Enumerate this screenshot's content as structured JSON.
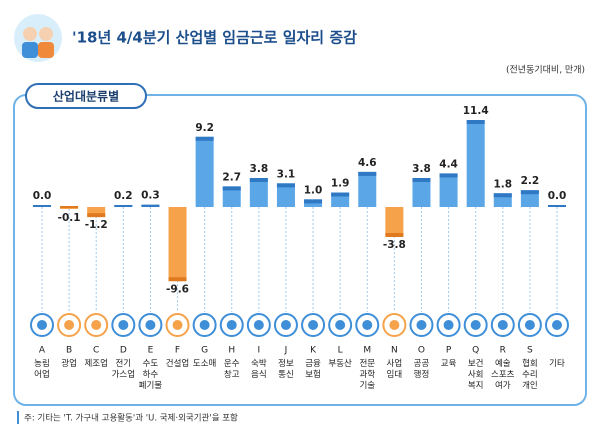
{
  "chart_data": {
    "type": "bar",
    "title": "'18년 4/4분기 산업별 임금근로 일자리 증감",
    "unit": "(전년동기대비, 만개)",
    "section": "산업대분류별",
    "footnote": "주: 기타는 'T. 가구내 고용활동'과 'U. 국제·외국기관'을 포함",
    "codes": [
      "A",
      "B",
      "C",
      "D",
      "E",
      "F",
      "G",
      "H",
      "I",
      "J",
      "K",
      "L",
      "M",
      "N",
      "O",
      "P",
      "Q",
      "R",
      "S",
      null
    ],
    "categories": [
      "농림\n어업",
      "광업",
      "제조업",
      "전기\n가스업",
      "수도\n하수\n폐기물",
      "건설업",
      "도소매",
      "운수\n창고",
      "숙박\n음식",
      "정보\n통신",
      "금융\n보험",
      "부동산",
      "전문\n과학\n기술",
      "사업\n임대",
      "공공\n행정",
      "교육",
      "보건\n사회\n복지",
      "예술\n스포츠\n여가",
      "협회\n수리\n개인",
      "기타"
    ],
    "values": [
      0,
      -0.1,
      -1.2,
      0.2,
      0.3,
      -9.6,
      9.2,
      2.7,
      3.8,
      3.1,
      1.0,
      1.9,
      4.6,
      -3.8,
      3.8,
      4.4,
      11.4,
      1.8,
      2.2,
      0
    ],
    "value_labels": [
      "0.0",
      "-0.1",
      "-1.2",
      "0.2",
      "0.3",
      "-9.6",
      "9.2",
      "2.7",
      "3.8",
      "3.1",
      "1.0",
      "1.9",
      "4.6",
      "-3.8",
      "3.8",
      "4.4",
      "11.4",
      "1.8",
      "2.2",
      "0.0"
    ],
    "positive_color": "#5aa6e6",
    "negative_color": "#f5a24a"
  }
}
